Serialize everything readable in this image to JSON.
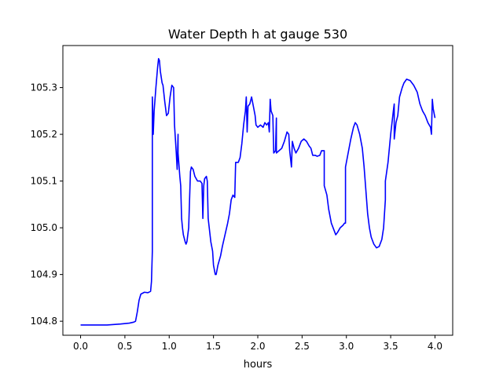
{
  "chart_data": {
    "type": "line",
    "title": "Water Depth h at gauge 530",
    "xlabel": "hours",
    "ylabel": "",
    "xlim": [
      -0.2,
      4.2
    ],
    "ylim": [
      104.77,
      105.39
    ],
    "xticks": [
      0.0,
      0.5,
      1.0,
      1.5,
      2.0,
      2.5,
      3.0,
      3.5,
      4.0
    ],
    "xtick_labels": [
      "0.0",
      "0.5",
      "1.0",
      "1.5",
      "2.0",
      "2.5",
      "3.0",
      "3.5",
      "4.0"
    ],
    "yticks": [
      104.8,
      104.9,
      105.0,
      105.1,
      105.2,
      105.3
    ],
    "ytick_labels": [
      "104.8",
      "104.9",
      "105.0",
      "105.1",
      "105.2",
      "105.3"
    ],
    "grid": false,
    "series": [
      {
        "color": "#0000ff",
        "points": [
          [
            0.0,
            104.792
          ],
          [
            0.3,
            104.792
          ],
          [
            0.45,
            104.794
          ],
          [
            0.55,
            104.796
          ],
          [
            0.6,
            104.798
          ],
          [
            0.62,
            104.8
          ],
          [
            0.64,
            104.82
          ],
          [
            0.66,
            104.845
          ],
          [
            0.68,
            104.858
          ],
          [
            0.72,
            104.862
          ],
          [
            0.76,
            104.861
          ],
          [
            0.79,
            104.864
          ],
          [
            0.8,
            104.885
          ],
          [
            0.81,
            104.95
          ],
          [
            0.81,
            105.28
          ],
          [
            0.82,
            105.2
          ],
          [
            0.83,
            105.25
          ],
          [
            0.85,
            105.3
          ],
          [
            0.87,
            105.345
          ],
          [
            0.88,
            105.362
          ],
          [
            0.89,
            105.358
          ],
          [
            0.9,
            105.335
          ],
          [
            0.92,
            105.31
          ],
          [
            0.93,
            105.305
          ],
          [
            0.95,
            105.27
          ],
          [
            0.97,
            105.24
          ],
          [
            0.99,
            105.245
          ],
          [
            1.01,
            105.28
          ],
          [
            1.03,
            105.305
          ],
          [
            1.05,
            105.3
          ],
          [
            1.06,
            105.22
          ],
          [
            1.08,
            105.16
          ],
          [
            1.09,
            105.125
          ],
          [
            1.1,
            105.2
          ],
          [
            1.1,
            105.16
          ],
          [
            1.12,
            105.11
          ],
          [
            1.13,
            105.09
          ],
          [
            1.14,
            105.02
          ],
          [
            1.15,
            105.0
          ],
          [
            1.16,
            104.985
          ],
          [
            1.18,
            104.97
          ],
          [
            1.19,
            104.965
          ],
          [
            1.2,
            104.97
          ],
          [
            1.22,
            105.0
          ],
          [
            1.23,
            105.06
          ],
          [
            1.24,
            105.12
          ],
          [
            1.25,
            105.13
          ],
          [
            1.27,
            105.125
          ],
          [
            1.29,
            105.11
          ],
          [
            1.32,
            105.1
          ],
          [
            1.35,
            105.1
          ],
          [
            1.37,
            105.095
          ],
          [
            1.38,
            105.02
          ],
          [
            1.39,
            105.09
          ],
          [
            1.4,
            105.105
          ],
          [
            1.42,
            105.11
          ],
          [
            1.43,
            105.1
          ],
          [
            1.44,
            105.02
          ],
          [
            1.47,
            104.97
          ],
          [
            1.49,
            104.95
          ],
          [
            1.5,
            104.92
          ],
          [
            1.52,
            104.9
          ],
          [
            1.53,
            104.9
          ],
          [
            1.55,
            104.92
          ],
          [
            1.58,
            104.94
          ],
          [
            1.6,
            104.96
          ],
          [
            1.63,
            104.985
          ],
          [
            1.66,
            105.01
          ],
          [
            1.68,
            105.03
          ],
          [
            1.7,
            105.06
          ],
          [
            1.72,
            105.07
          ],
          [
            1.74,
            105.065
          ],
          [
            1.75,
            105.14
          ],
          [
            1.78,
            105.14
          ],
          [
            1.8,
            105.15
          ],
          [
            1.82,
            105.18
          ],
          [
            1.84,
            105.22
          ],
          [
            1.86,
            105.25
          ],
          [
            1.87,
            105.28
          ],
          [
            1.88,
            105.205
          ],
          [
            1.89,
            105.26
          ],
          [
            1.91,
            105.265
          ],
          [
            1.93,
            105.28
          ],
          [
            1.95,
            105.26
          ],
          [
            1.97,
            105.24
          ],
          [
            1.98,
            105.22
          ],
          [
            2.0,
            105.215
          ],
          [
            2.03,
            105.22
          ],
          [
            2.06,
            105.215
          ],
          [
            2.08,
            105.225
          ],
          [
            2.1,
            105.22
          ],
          [
            2.12,
            105.225
          ],
          [
            2.13,
            105.205
          ],
          [
            2.14,
            105.275
          ],
          [
            2.15,
            105.25
          ],
          [
            2.17,
            105.24
          ],
          [
            2.18,
            105.16
          ],
          [
            2.2,
            105.165
          ],
          [
            2.21,
            105.235
          ],
          [
            2.21,
            105.16
          ],
          [
            2.24,
            105.165
          ],
          [
            2.27,
            105.17
          ],
          [
            2.3,
            105.185
          ],
          [
            2.33,
            105.205
          ],
          [
            2.35,
            105.2
          ],
          [
            2.36,
            105.165
          ],
          [
            2.38,
            105.13
          ],
          [
            2.39,
            105.185
          ],
          [
            2.41,
            105.17
          ],
          [
            2.43,
            105.16
          ],
          [
            2.46,
            105.17
          ],
          [
            2.49,
            105.185
          ],
          [
            2.52,
            105.19
          ],
          [
            2.55,
            105.185
          ],
          [
            2.58,
            105.175
          ],
          [
            2.6,
            105.17
          ],
          [
            2.62,
            105.155
          ],
          [
            2.65,
            105.155
          ],
          [
            2.67,
            105.153
          ],
          [
            2.7,
            105.155
          ],
          [
            2.72,
            105.165
          ],
          [
            2.75,
            105.165
          ],
          [
            2.75,
            105.09
          ],
          [
            2.78,
            105.07
          ],
          [
            2.8,
            105.04
          ],
          [
            2.83,
            105.01
          ],
          [
            2.86,
            104.995
          ],
          [
            2.88,
            104.985
          ],
          [
            2.9,
            104.99
          ],
          [
            2.93,
            105.0
          ],
          [
            2.96,
            105.005
          ],
          [
            2.98,
            105.01
          ],
          [
            2.99,
            105.01
          ],
          [
            2.99,
            105.13
          ],
          [
            3.02,
            105.16
          ],
          [
            3.05,
            105.19
          ],
          [
            3.08,
            105.215
          ],
          [
            3.1,
            105.225
          ],
          [
            3.12,
            105.22
          ],
          [
            3.15,
            105.2
          ],
          [
            3.18,
            105.17
          ],
          [
            3.2,
            105.13
          ],
          [
            3.22,
            105.08
          ],
          [
            3.24,
            105.03
          ],
          [
            3.26,
            105.0
          ],
          [
            3.28,
            104.98
          ],
          [
            3.31,
            104.965
          ],
          [
            3.34,
            104.957
          ],
          [
            3.37,
            104.96
          ],
          [
            3.4,
            104.975
          ],
          [
            3.42,
            105.0
          ],
          [
            3.44,
            105.06
          ],
          [
            3.44,
            105.1
          ],
          [
            3.47,
            105.14
          ],
          [
            3.5,
            105.2
          ],
          [
            3.53,
            105.25
          ],
          [
            3.54,
            105.265
          ],
          [
            3.54,
            105.19
          ],
          [
            3.56,
            105.225
          ],
          [
            3.58,
            105.24
          ],
          [
            3.6,
            105.28
          ],
          [
            3.63,
            105.3
          ],
          [
            3.65,
            105.31
          ],
          [
            3.68,
            105.318
          ],
          [
            3.72,
            105.315
          ],
          [
            3.76,
            105.305
          ],
          [
            3.8,
            105.29
          ],
          [
            3.83,
            105.265
          ],
          [
            3.86,
            105.25
          ],
          [
            3.89,
            105.24
          ],
          [
            3.92,
            105.225
          ],
          [
            3.95,
            105.215
          ],
          [
            3.96,
            105.2
          ],
          [
            3.97,
            105.275
          ],
          [
            3.98,
            105.255
          ],
          [
            4.0,
            105.235
          ]
        ]
      }
    ]
  }
}
